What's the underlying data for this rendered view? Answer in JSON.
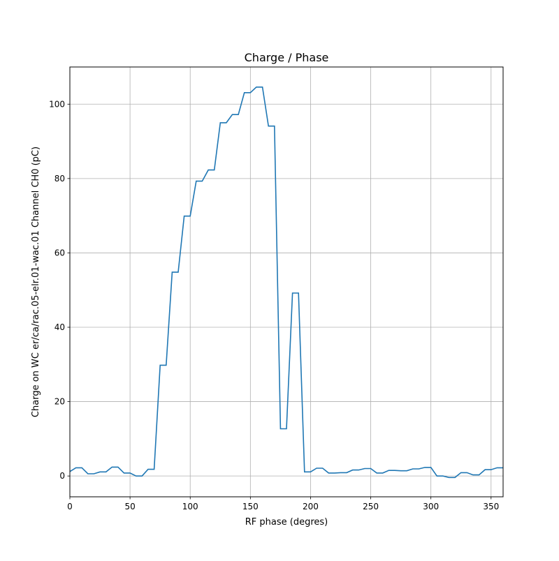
{
  "chart_data": {
    "type": "line",
    "title": "Charge / Phase",
    "xlabel": "RF phase (degres)",
    "ylabel": "Charge on WC er/ca/rac.05-elr.01-wac.01 Channel CH0 (pC)",
    "xlim": [
      0,
      360
    ],
    "ylim": [
      -5.6,
      110
    ],
    "xticks": [
      0,
      50,
      100,
      150,
      200,
      250,
      300,
      350
    ],
    "yticks": [
      0,
      20,
      40,
      60,
      80,
      100
    ],
    "grid": true,
    "line_color": "#1f77b4",
    "series": [
      {
        "x": [
          0,
          5,
          10,
          15,
          20,
          25,
          30,
          35,
          40,
          45,
          50,
          55,
          60,
          65,
          70,
          75,
          80,
          85,
          90,
          95,
          100,
          105,
          110,
          115,
          120,
          125,
          130,
          135,
          140,
          145,
          150,
          155,
          160,
          165,
          170,
          175,
          180,
          185,
          190,
          195,
          200,
          205,
          210,
          215,
          220,
          225,
          230,
          235,
          240,
          245,
          250,
          255,
          260,
          265,
          270,
          275,
          280,
          285,
          290,
          295,
          300,
          305,
          310,
          315,
          320,
          325,
          330,
          335,
          340,
          345,
          350,
          355,
          360
        ],
        "y": [
          1.2,
          2.2,
          2.2,
          0.6,
          0.6,
          1.1,
          1.1,
          2.4,
          2.4,
          0.8,
          0.8,
          0.0,
          0.0,
          1.8,
          1.8,
          29.8,
          29.8,
          54.8,
          54.8,
          69.9,
          69.9,
          79.3,
          79.3,
          82.3,
          82.3,
          95.0,
          95.0,
          97.2,
          97.2,
          103.1,
          103.1,
          104.6,
          104.6,
          94.1,
          94.1,
          12.7,
          12.7,
          49.2,
          49.2,
          1.1,
          1.1,
          2.1,
          2.1,
          0.8,
          0.8,
          0.9,
          0.9,
          1.6,
          1.6,
          2.0,
          2.0,
          0.8,
          0.8,
          1.5,
          1.5,
          1.4,
          1.4,
          1.9,
          1.9,
          2.3,
          2.3,
          0.0,
          0.0,
          -0.4,
          -0.4,
          0.9,
          0.9,
          0.3,
          0.3,
          1.7,
          1.7,
          2.2,
          2.2
        ]
      }
    ]
  }
}
